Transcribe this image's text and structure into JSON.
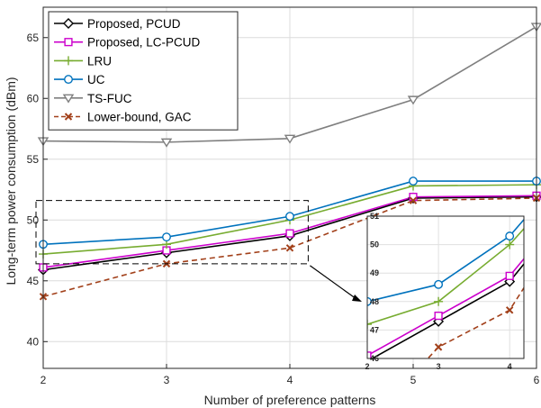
{
  "chart_data": {
    "type": "line",
    "xlabel": "Number of preference patterns",
    "ylabel": "Long-term power consumption (dBm)",
    "xlim": [
      2,
      6
    ],
    "ylim": [
      37.8,
      67.5
    ],
    "xticks": [
      "2",
      "3",
      "4",
      "5",
      "6"
    ],
    "yticks": [
      "40",
      "45",
      "50",
      "55",
      "60",
      "65"
    ],
    "grid": true,
    "legend_position": "top-left",
    "x": [
      2,
      3,
      4,
      5,
      6
    ],
    "series": [
      {
        "name": "Proposed, PCUD",
        "color": "#000000",
        "marker": "diamond",
        "dash": "solid",
        "values": [
          45.9,
          47.3,
          48.7,
          51.8,
          51.9
        ]
      },
      {
        "name": "Proposed, LC-PCUD",
        "color": "#cc00cc",
        "marker": "square",
        "dash": "solid",
        "values": [
          46.1,
          47.5,
          48.9,
          51.9,
          52.0
        ]
      },
      {
        "name": "LRU",
        "color": "#77ac30",
        "marker": "plus",
        "dash": "solid",
        "values": [
          47.2,
          48.0,
          50.0,
          52.8,
          52.9
        ]
      },
      {
        "name": "UC",
        "color": "#0072bd",
        "marker": "circle",
        "dash": "solid",
        "values": [
          48.0,
          48.6,
          50.3,
          53.2,
          53.2
        ]
      },
      {
        "name": "TS-FUC",
        "color": "#7f7f7f",
        "marker": "triangle-down",
        "dash": "solid",
        "values": [
          56.5,
          56.4,
          56.7,
          59.9,
          65.9
        ]
      },
      {
        "name": "Lower-bound, GAC",
        "color": "#a2401a",
        "marker": "x",
        "dash": "dashed",
        "values": [
          43.7,
          46.4,
          47.7,
          51.6,
          51.8
        ]
      }
    ],
    "inset": {
      "xticks": [
        "2",
        "3",
        "4"
      ],
      "yticks": [
        "46",
        "47",
        "48",
        "49",
        "50",
        "51"
      ],
      "xlim": [
        2,
        4.2
      ],
      "ylim": [
        46,
        51
      ]
    }
  }
}
